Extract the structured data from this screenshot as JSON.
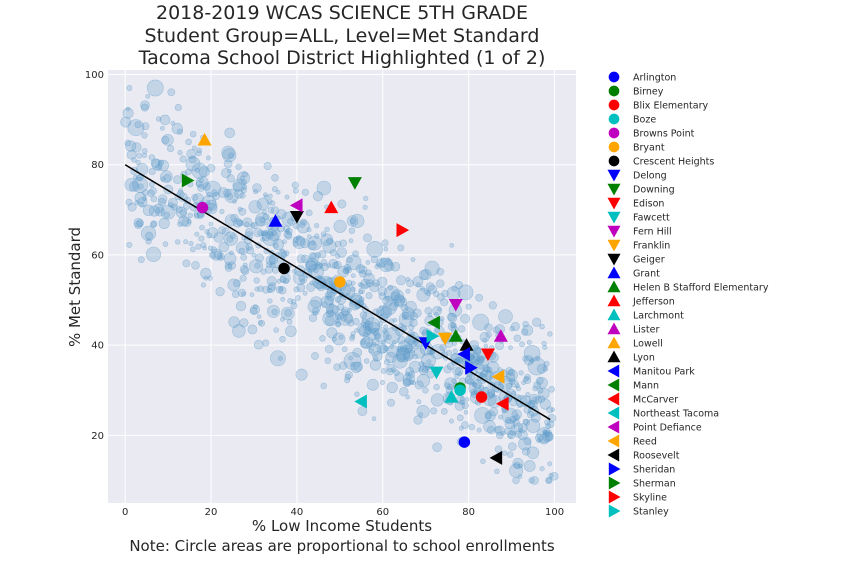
{
  "chart_data": {
    "type": "scatter",
    "title": [
      "2018-2019 WCAS SCIENCE 5TH GRADE",
      "Student Group=ALL, Level=Met Standard",
      "Tacoma School District Highlighted (1 of 2)"
    ],
    "xlabel": "% Low Income Students",
    "ylabel": "% Met Standard",
    "note": "Note: Circle areas are proportional to school enrollments",
    "xlim": [
      -4,
      105
    ],
    "ylim": [
      5,
      101
    ],
    "xticks": [
      0,
      20,
      40,
      60,
      80,
      100
    ],
    "yticks": [
      20,
      40,
      60,
      80,
      100
    ],
    "grid": true,
    "legend_position": "right-outside",
    "background_color": "#EAEAF2",
    "background_point_color": "#5C9BC9",
    "regression_line": {
      "x": [
        0,
        99
      ],
      "y": [
        80,
        23.5
      ],
      "color": "#000000"
    },
    "highlighted": [
      {
        "name": "Arlington",
        "x": 79,
        "y": 18.5,
        "marker": "circle",
        "color": "#0000FF"
      },
      {
        "name": "Birney",
        "x": 78,
        "y": 30.5,
        "marker": "circle",
        "color": "#008000"
      },
      {
        "name": "Blix Elementary",
        "x": 83,
        "y": 28.5,
        "marker": "circle",
        "color": "#FF0000"
      },
      {
        "name": "Boze",
        "x": 78,
        "y": 30,
        "marker": "circle",
        "color": "#00BFBF"
      },
      {
        "name": "Browns Point",
        "x": 18,
        "y": 70.5,
        "marker": "circle",
        "color": "#BF00BF"
      },
      {
        "name": "Bryant",
        "x": 50,
        "y": 54,
        "marker": "circle",
        "color": "#FFA500"
      },
      {
        "name": "Crescent Heights",
        "x": 37,
        "y": 57,
        "marker": "circle",
        "color": "#000000"
      },
      {
        "name": "Delong",
        "x": 70,
        "y": 40.5,
        "marker": "triangle-down",
        "color": "#0000FF"
      },
      {
        "name": "Downing",
        "x": 53.5,
        "y": 76,
        "marker": "triangle-down",
        "color": "#008000"
      },
      {
        "name": "Edison",
        "x": 84.5,
        "y": 38,
        "marker": "triangle-down",
        "color": "#FF0000"
      },
      {
        "name": "Fawcett",
        "x": 72.5,
        "y": 34,
        "marker": "triangle-down",
        "color": "#00BFBF"
      },
      {
        "name": "Fern Hill",
        "x": 77,
        "y": 49,
        "marker": "triangle-down",
        "color": "#BF00BF"
      },
      {
        "name": "Franklin",
        "x": 74.5,
        "y": 41.5,
        "marker": "triangle-down",
        "color": "#FFA500"
      },
      {
        "name": "Geiger",
        "x": 40,
        "y": 68.5,
        "marker": "triangle-down",
        "color": "#000000"
      },
      {
        "name": "Grant",
        "x": 35,
        "y": 67.5,
        "marker": "triangle-up",
        "color": "#0000FF"
      },
      {
        "name": "Helen B Stafford Elementary",
        "x": 77,
        "y": 42,
        "marker": "triangle-up",
        "color": "#008000"
      },
      {
        "name": "Jefferson",
        "x": 48,
        "y": 70.5,
        "marker": "triangle-up",
        "color": "#FF0000"
      },
      {
        "name": "Larchmont",
        "x": 76,
        "y": 28.5,
        "marker": "triangle-up",
        "color": "#00BFBF"
      },
      {
        "name": "Lister",
        "x": 87.5,
        "y": 42,
        "marker": "triangle-up",
        "color": "#BF00BF"
      },
      {
        "name": "Lowell",
        "x": 18.5,
        "y": 85.5,
        "marker": "triangle-up",
        "color": "#FFA500"
      },
      {
        "name": "Lyon",
        "x": 79.5,
        "y": 40,
        "marker": "triangle-up",
        "color": "#000000"
      },
      {
        "name": "Manitou Park",
        "x": 79,
        "y": 38,
        "marker": "triangle-left",
        "color": "#0000FF"
      },
      {
        "name": "Mann",
        "x": 72,
        "y": 45,
        "marker": "triangle-left",
        "color": "#008000"
      },
      {
        "name": "McCarver",
        "x": 88,
        "y": 27,
        "marker": "triangle-left",
        "color": "#FF0000"
      },
      {
        "name": "Northeast Tacoma",
        "x": 55,
        "y": 27.5,
        "marker": "triangle-left",
        "color": "#00BFBF"
      },
      {
        "name": "Point Defiance",
        "x": 40,
        "y": 71,
        "marker": "triangle-left",
        "color": "#BF00BF"
      },
      {
        "name": "Reed",
        "x": 87,
        "y": 33,
        "marker": "triangle-left",
        "color": "#FFA500"
      },
      {
        "name": "Roosevelt",
        "x": 86.5,
        "y": 15,
        "marker": "triangle-left",
        "color": "#000000"
      },
      {
        "name": "Sheridan",
        "x": 80.5,
        "y": 35,
        "marker": "triangle-right",
        "color": "#0000FF"
      },
      {
        "name": "Sherman",
        "x": 14.5,
        "y": 76.5,
        "marker": "triangle-right",
        "color": "#008000"
      },
      {
        "name": "Skyline",
        "x": 64.5,
        "y": 65.5,
        "marker": "triangle-right",
        "color": "#FF0000"
      },
      {
        "name": "Stanley",
        "x": 71.5,
        "y": 42,
        "marker": "triangle-right",
        "color": "#00BFBF"
      }
    ]
  }
}
